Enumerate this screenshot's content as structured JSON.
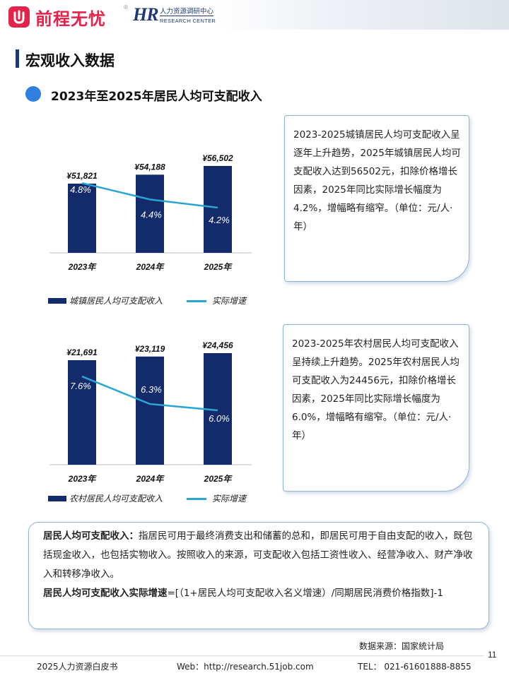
{
  "header": {
    "brand": "前程无忧",
    "registered": "®",
    "hr_mark": "HR",
    "hr_cn": "人力资源调研中心",
    "hr_en": "RESEARCH CENTER",
    "accent": "#e4234d",
    "navy": "#1f3a73"
  },
  "section": {
    "title": "宏观收入数据"
  },
  "subsection": {
    "title": "2023年至2025年居民人均可支配收入"
  },
  "chart_data": [
    {
      "type": "bar",
      "categories": [
        "2023年",
        "2024年",
        "2025年"
      ],
      "series": [
        {
          "name": "城镇居民人均可支配收入",
          "values": [
            51821,
            54188,
            56502
          ],
          "labels": [
            "¥51,821",
            "¥54,188",
            "¥56,502"
          ],
          "color": "#132a6b"
        },
        {
          "name": "实际增速",
          "type": "line",
          "values": [
            4.8,
            4.4,
            4.2
          ],
          "labels": [
            "4.8%",
            "4.4%",
            "4.2%"
          ],
          "color": "#2aa6d6"
        }
      ],
      "legend": "bottom"
    },
    {
      "type": "bar",
      "categories": [
        "2023年",
        "2024年",
        "2025年"
      ],
      "series": [
        {
          "name": "农村居民人均可支配收入",
          "values": [
            21691,
            23119,
            24456
          ],
          "labels": [
            "¥21,691",
            "¥23,119",
            "¥24,456"
          ],
          "color": "#132a6b"
        },
        {
          "name": "实际增速",
          "type": "line",
          "values": [
            7.6,
            6.3,
            6.0
          ],
          "labels": [
            "7.6%",
            "6.3%",
            "6.0%"
          ],
          "color": "#2aa6d6"
        }
      ],
      "legend": "bottom"
    }
  ],
  "notes": {
    "urban": "2023-2025城镇居民人均可支配收入呈逐年上升趋势，2025年城镇居民人均可支配收入达到56502元，扣除价格增长因素，2025年同比实际增长幅度为4.2%，增幅略有缩窄。（单位：元/人·年）",
    "rural": "2023-2025年农村居民人均可支配收入呈持续上升趋势。2025年农村居民人均可支配收入为24456元，扣除价格增长因素，2025年同比实际增长幅度为6.0%，增幅略有缩窄。（单位：元/人·年）"
  },
  "definitions": {
    "term1": "居民人均可支配收入：",
    "text1": "指居民可用于最终消费支出和储蓄的总和，即居民可用于自由支配的收入，既包括现金收入，也包括实物收入。按照收入的来源，可支配收入包括工资性收入、经营净收入、财产净收入和转移净收入。",
    "term2": "居民人均可支配收入实际增速",
    "text2": "=[（1+居民人均可支配收入名义增速）/同期居民消费价格指数]-1"
  },
  "source": "数据来源：国家统计局",
  "page_number": "11",
  "footer": {
    "left": "2025人力资源白皮书",
    "web": "Web：http://research.51job.com",
    "tel": "TEL： 021-61601888-8855"
  }
}
